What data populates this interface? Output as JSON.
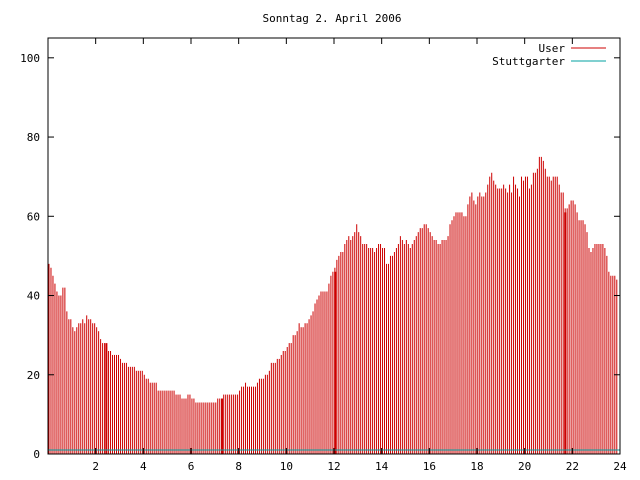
{
  "chart_data": {
    "type": "bar",
    "title": "Sonntag 2. April 2006",
    "xlabel": "",
    "ylabel": "",
    "xlim": [
      0,
      24
    ],
    "ylim": [
      0,
      105
    ],
    "x_ticks": [
      2,
      4,
      6,
      8,
      10,
      12,
      14,
      16,
      18,
      20,
      22,
      24
    ],
    "x_tick_labels": [
      "2",
      "4",
      "6",
      "8",
      "10",
      "12",
      "14",
      "16",
      "18",
      "20",
      "22",
      "24"
    ],
    "y_ticks": [
      0,
      20,
      40,
      60,
      80,
      100
    ],
    "y_tick_labels": [
      "0",
      "20",
      "40",
      "60",
      "80",
      "100"
    ],
    "grid": false,
    "legend_position": "top-right",
    "series": [
      {
        "name": "User",
        "color": "#cc0000",
        "step_hours": 0.0833,
        "values": [
          48,
          47,
          45,
          43,
          41,
          40,
          40,
          42,
          42,
          36,
          34,
          34,
          32,
          31,
          32,
          33,
          33,
          34,
          33,
          35,
          34,
          34,
          33,
          33,
          32,
          31,
          29,
          28,
          28,
          27,
          26,
          26,
          25,
          25,
          25,
          25,
          24,
          23,
          23,
          23,
          22,
          22,
          22,
          22,
          21,
          21,
          21,
          21,
          20,
          19,
          19,
          18,
          18,
          18,
          18,
          16,
          16,
          16,
          16,
          16,
          16,
          16,
          16,
          16,
          15,
          15,
          15,
          14,
          14,
          14,
          15,
          15,
          14,
          14,
          13,
          13,
          13,
          13,
          13,
          13,
          13,
          13,
          13,
          13,
          13,
          14,
          14,
          14,
          15,
          15,
          15,
          15,
          15,
          15,
          15,
          15,
          16,
          17,
          17,
          18,
          17,
          17,
          17,
          17,
          17,
          18,
          19,
          19,
          19,
          20,
          20,
          21,
          23,
          23,
          23,
          24,
          24,
          25,
          26,
          26,
          27,
          28,
          28,
          30,
          30,
          31,
          33,
          32,
          32,
          33,
          33,
          34,
          35,
          36,
          38,
          39,
          40,
          41,
          41,
          41,
          41,
          43,
          45,
          46,
          47,
          49,
          50,
          51,
          51,
          53,
          54,
          55,
          54,
          55,
          56,
          58,
          56,
          55,
          53,
          53,
          53,
          52,
          52,
          52,
          51,
          52,
          53,
          53,
          52,
          52,
          48,
          48,
          50,
          50,
          51,
          52,
          53,
          55,
          54,
          53,
          54,
          53,
          52,
          53,
          54,
          55,
          56,
          57,
          57,
          58,
          58,
          57,
          56,
          55,
          54,
          54,
          53,
          53,
          54,
          54,
          54,
          55,
          58,
          59,
          60,
          61,
          61,
          61,
          61,
          60,
          60,
          63,
          65,
          66,
          64,
          63,
          65,
          66,
          65,
          65,
          66,
          68,
          70,
          71,
          69,
          68,
          67,
          67,
          67,
          68,
          67,
          66,
          68,
          66,
          70,
          68,
          67,
          65,
          70,
          69,
          70,
          70,
          67,
          68,
          71,
          71,
          72,
          75,
          75,
          74,
          72,
          70,
          70,
          69,
          70,
          70,
          70,
          68,
          66,
          66,
          62,
          62,
          63,
          64,
          64,
          63,
          61,
          59,
          59,
          59,
          58,
          56,
          52,
          51,
          52,
          53,
          53,
          53,
          53,
          53,
          52,
          50,
          46,
          45,
          45,
          45,
          44
        ]
      },
      {
        "name": "Stuttgarter",
        "color": "#00a0a0",
        "values": [
          1
        ]
      }
    ],
    "highlight_bars": [
      {
        "x": 2.45,
        "value": 28
      },
      {
        "x": 7.3,
        "value": 14
      },
      {
        "x": 12.05,
        "value": 46
      },
      {
        "x": 21.7,
        "value": 61
      }
    ]
  }
}
